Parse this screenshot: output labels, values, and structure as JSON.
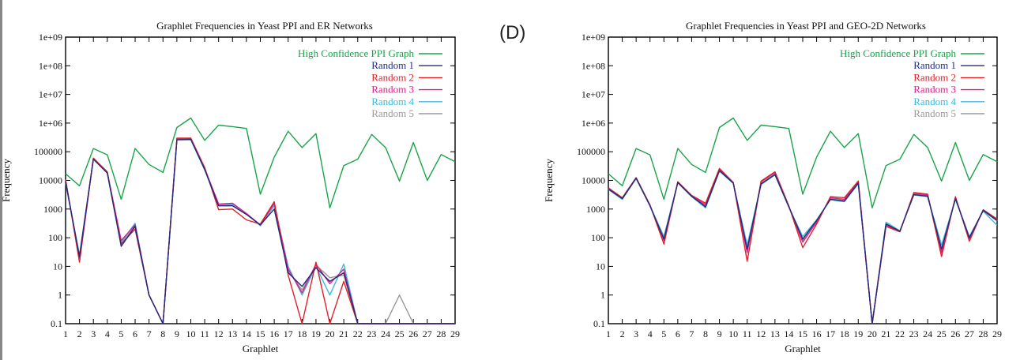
{
  "panel_label": "(D)",
  "chart_data": [
    {
      "type": "line",
      "title": "Graphlet Frequencies in Yeast PPI and ER Networks",
      "xlabel": "Graphlet",
      "ylabel": "Frequency",
      "yscale": "log",
      "ylim": [
        0.1,
        1000000000
      ],
      "yticks": [
        "0.1",
        "1",
        "10",
        "100",
        "1000",
        "10000",
        "100000",
        "1e+06",
        "1e+07",
        "1e+08",
        "1e+09"
      ],
      "x": [
        1,
        2,
        3,
        4,
        5,
        6,
        7,
        8,
        9,
        10,
        11,
        12,
        13,
        14,
        15,
        16,
        17,
        18,
        19,
        20,
        21,
        22,
        23,
        24,
        25,
        26,
        27,
        28,
        29
      ],
      "legend": "top-right",
      "series": [
        {
          "name": "High Confidence PPI Graph",
          "color": "#1aa44a",
          "values": [
            17000,
            6500,
            130000,
            78000,
            2200,
            130000,
            36000,
            19000,
            700000,
            1500000,
            250000,
            850000,
            750000,
            650000,
            3300,
            65000,
            520000,
            140000,
            430000,
            1100,
            33000,
            55000,
            400000,
            140000,
            9500,
            210000,
            10000,
            80000,
            45000
          ]
        },
        {
          "name": "Random 1",
          "color": "#202b80",
          "values": [
            9000,
            22,
            55000,
            18000,
            50,
            250,
            1,
            0.1,
            260000,
            270000,
            24000,
            1300,
            1300,
            650,
            280,
            1000,
            6,
            2,
            9,
            3,
            6,
            0.1,
            0.1,
            0.1,
            0.1,
            0.1,
            0.1,
            0.1,
            0.1
          ]
        },
        {
          "name": "Random 2",
          "color": "#e0202a",
          "values": [
            11000,
            14,
            60000,
            20000,
            60,
            200,
            1,
            0.1,
            300000,
            300000,
            28000,
            950,
            1000,
            420,
            300,
            1800,
            5,
            0.1,
            14,
            0.1,
            3,
            0.1,
            0.1,
            0.1,
            0.1,
            0.1,
            0.1,
            0.1,
            0.1
          ]
        },
        {
          "name": "Random 3",
          "color": "#e01e8c",
          "values": [
            10000,
            20,
            60000,
            19000,
            80,
            280,
            1,
            0.1,
            280000,
            290000,
            26000,
            1500,
            1600,
            700,
            280,
            1600,
            8,
            1.2,
            12,
            2.5,
            8,
            0.1,
            0.1,
            0.1,
            0.1,
            0.1,
            0.1,
            0.1,
            0.1
          ]
        },
        {
          "name": "Random 4",
          "color": "#3cb8e0",
          "values": [
            8000,
            25,
            55000,
            18000,
            70,
            320,
            1,
            0.1,
            260000,
            260000,
            23000,
            1400,
            1500,
            700,
            260,
            1400,
            10,
            1,
            10,
            1,
            12,
            0.1,
            0.1,
            0.1,
            0.1,
            0.1,
            0.1,
            0.1,
            0.1
          ]
        },
        {
          "name": "Random 5",
          "color": "#999999",
          "values": [
            9000,
            20,
            57000,
            18500,
            65,
            250,
            1,
            0.1,
            270000,
            270000,
            25000,
            1350,
            1400,
            680,
            270,
            1300,
            7,
            1.5,
            11,
            4,
            5,
            0.1,
            0.1,
            0.1,
            1,
            0.1,
            0.1,
            0.1,
            0.1
          ]
        }
      ]
    },
    {
      "type": "line",
      "title": "Graphlet Frequencies in Yeast PPI and GEO-2D Networks",
      "xlabel": "Graphlet",
      "ylabel": "Frequency",
      "yscale": "log",
      "ylim": [
        0.1,
        1000000000
      ],
      "yticks": [
        "0.1",
        "1",
        "10",
        "100",
        "1000",
        "10000",
        "100000",
        "1e+06",
        "1e+07",
        "1e+08",
        "1e+09"
      ],
      "x": [
        1,
        2,
        3,
        4,
        5,
        6,
        7,
        8,
        9,
        10,
        11,
        12,
        13,
        14,
        15,
        16,
        17,
        18,
        19,
        20,
        21,
        22,
        23,
        24,
        25,
        26,
        27,
        28,
        29
      ],
      "legend": "top-right",
      "series": [
        {
          "name": "High Confidence PPI Graph",
          "color": "#1aa44a",
          "values": [
            17000,
            6500,
            130000,
            78000,
            2200,
            130000,
            36000,
            19000,
            700000,
            1500000,
            250000,
            850000,
            750000,
            650000,
            3300,
            65000,
            520000,
            140000,
            430000,
            1100,
            33000,
            55000,
            400000,
            140000,
            9500,
            210000,
            10000,
            80000,
            45000
          ]
        },
        {
          "name": "Random 1",
          "color": "#202b80",
          "values": [
            5000,
            2300,
            12000,
            1300,
            90,
            8500,
            2800,
            1200,
            22000,
            8000,
            40,
            7500,
            16000,
            1200,
            90,
            400,
            2200,
            1900,
            8000,
            0.1,
            300,
            170,
            3200,
            2800,
            40,
            2300,
            100,
            900,
            400
          ]
        },
        {
          "name": "Random 2",
          "color": "#e0202a",
          "values": [
            5500,
            2500,
            12500,
            1400,
            60,
            9000,
            3000,
            1600,
            26000,
            8500,
            15,
            9500,
            20000,
            1300,
            45,
            300,
            2700,
            2500,
            9500,
            0.1,
            250,
            160,
            3800,
            3300,
            22,
            2700,
            75,
            950,
            450
          ]
        },
        {
          "name": "Random 3",
          "color": "#e01e8c",
          "values": [
            5200,
            2400,
            12000,
            1350,
            80,
            8800,
            2900,
            1400,
            25000,
            8300,
            30,
            9000,
            19000,
            1250,
            70,
            350,
            2500,
            2200,
            9000,
            0.1,
            280,
            165,
            3600,
            3100,
            30,
            2500,
            90,
            920,
            430
          ]
        },
        {
          "name": "Random 4",
          "color": "#3cb8e0",
          "values": [
            4800,
            2200,
            11500,
            1300,
            110,
            8200,
            2700,
            1100,
            21000,
            7800,
            55,
            7200,
            15500,
            1150,
            110,
            420,
            2100,
            1800,
            7600,
            0.1,
            350,
            175,
            3100,
            2700,
            55,
            2200,
            110,
            850,
            270
          ]
        },
        {
          "name": "Random 5",
          "color": "#999999",
          "values": [
            5000,
            2300,
            12000,
            1300,
            85,
            8500,
            2800,
            1250,
            23000,
            8000,
            35,
            8000,
            17000,
            1200,
            80,
            380,
            2300,
            2000,
            8200,
            0.1,
            310,
            170,
            3300,
            2900,
            35,
            2400,
            95,
            880,
            380
          ]
        }
      ]
    }
  ]
}
